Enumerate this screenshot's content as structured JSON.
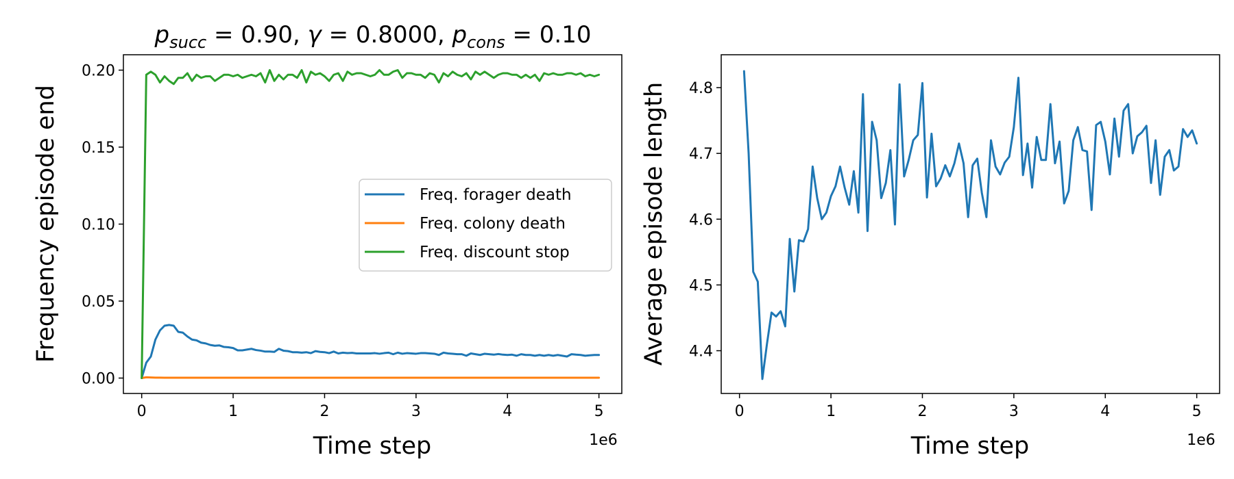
{
  "chart_data": [
    {
      "type": "line",
      "title": {
        "p": "p",
        "succ_sub": "succ",
        "succ_val": " = 0.90, ",
        "gamma": "γ",
        "gamma_val": " = 0.8000, ",
        "cons_sub": "cons",
        "cons_val": " = 0.10"
      },
      "xlabel": "Time step",
      "ylabel": "Frequency episode end",
      "x_offset_text": "1e6",
      "xlim": [
        -0.2,
        5.25
      ],
      "ylim": [
        -0.01,
        0.21
      ],
      "xticks": [
        0,
        1,
        2,
        3,
        4,
        5
      ],
      "xtick_labels": [
        "0",
        "1",
        "2",
        "3",
        "4",
        "5"
      ],
      "yticks": [
        0.0,
        0.05,
        0.1,
        0.15,
        0.2
      ],
      "ytick_labels": [
        "0.00",
        "0.05",
        "0.10",
        "0.15",
        "0.20"
      ],
      "legend_position": "center-right",
      "x": [
        0,
        0.05,
        0.1,
        0.15,
        0.2,
        0.25,
        0.3,
        0.35,
        0.4,
        0.45,
        0.5,
        0.55,
        0.6,
        0.65,
        0.7,
        0.75,
        0.8,
        0.85,
        0.9,
        0.95,
        1.0,
        1.05,
        1.1,
        1.15,
        1.2,
        1.25,
        1.3,
        1.35,
        1.4,
        1.45,
        1.5,
        1.55,
        1.6,
        1.65,
        1.7,
        1.75,
        1.8,
        1.85,
        1.9,
        1.95,
        2.0,
        2.05,
        2.1,
        2.15,
        2.2,
        2.25,
        2.3,
        2.35,
        2.4,
        2.45,
        2.5,
        2.55,
        2.6,
        2.65,
        2.7,
        2.75,
        2.8,
        2.85,
        2.9,
        2.95,
        3.0,
        3.05,
        3.1,
        3.15,
        3.2,
        3.25,
        3.3,
        3.35,
        3.4,
        3.45,
        3.5,
        3.55,
        3.6,
        3.65,
        3.7,
        3.75,
        3.8,
        3.85,
        3.9,
        3.95,
        4.0,
        4.05,
        4.1,
        4.15,
        4.2,
        4.25,
        4.3,
        4.35,
        4.4,
        4.45,
        4.5,
        4.55,
        4.6,
        4.65,
        4.7,
        4.75,
        4.8,
        4.85,
        4.9,
        4.95,
        5.0
      ],
      "series": [
        {
          "name": "Freq. forager death",
          "color": "#1f77b4",
          "values": [
            0.0,
            0.01,
            0.014,
            0.025,
            0.031,
            0.034,
            0.0345,
            0.034,
            0.03,
            0.0295,
            0.027,
            0.025,
            0.0245,
            0.023,
            0.0225,
            0.0215,
            0.021,
            0.0212,
            0.0202,
            0.02,
            0.0195,
            0.018,
            0.018,
            0.0185,
            0.019,
            0.0182,
            0.0178,
            0.0172,
            0.0172,
            0.017,
            0.019,
            0.0178,
            0.0175,
            0.0168,
            0.0168,
            0.0165,
            0.0168,
            0.0162,
            0.0175,
            0.017,
            0.0168,
            0.0162,
            0.0172,
            0.016,
            0.0165,
            0.0162,
            0.0164,
            0.016,
            0.016,
            0.016,
            0.016,
            0.0162,
            0.0158,
            0.0162,
            0.0165,
            0.0155,
            0.0165,
            0.0158,
            0.0162,
            0.016,
            0.0158,
            0.0162,
            0.0162,
            0.016,
            0.0158,
            0.015,
            0.0165,
            0.016,
            0.0158,
            0.0155,
            0.0155,
            0.0145,
            0.016,
            0.0155,
            0.015,
            0.0158,
            0.0155,
            0.0152,
            0.0156,
            0.0152,
            0.015,
            0.0152,
            0.0145,
            0.0155,
            0.015,
            0.015,
            0.0145,
            0.015,
            0.0145,
            0.015,
            0.0145,
            0.015,
            0.0145,
            0.014,
            0.0155,
            0.0152,
            0.015,
            0.0145,
            0.0148,
            0.015,
            0.015
          ]
        },
        {
          "name": "Freq. colony death",
          "color": "#ff7f0e",
          "values": [
            0.0,
            0.0005,
            0.0004,
            0.0003,
            0.0003,
            0.0002,
            0.0002,
            0.0002,
            0.0002,
            0.0002,
            0.0002,
            0.0002,
            0.0002,
            0.0002,
            0.0002,
            0.0002,
            0.0002,
            0.0002,
            0.0002,
            0.0002,
            0.0002,
            0.0002,
            0.0002,
            0.0002,
            0.0002,
            0.0002,
            0.0002,
            0.0002,
            0.0002,
            0.0002,
            0.0002,
            0.0002,
            0.0002,
            0.0002,
            0.0002,
            0.0002,
            0.0002,
            0.0002,
            0.0002,
            0.0002,
            0.0002,
            0.0002,
            0.0002,
            0.0002,
            0.0002,
            0.0002,
            0.0002,
            0.0002,
            0.0002,
            0.0002,
            0.0002,
            0.0002,
            0.0002,
            0.0002,
            0.0002,
            0.0002,
            0.0002,
            0.0002,
            0.0002,
            0.0002,
            0.0002,
            0.0002,
            0.0002,
            0.0002,
            0.0002,
            0.0002,
            0.0002,
            0.0002,
            0.0002,
            0.0002,
            0.0002,
            0.0002,
            0.0002,
            0.0002,
            0.0002,
            0.0002,
            0.0002,
            0.0002,
            0.0002,
            0.0002,
            0.0002,
            0.0002,
            0.0002,
            0.0002,
            0.0002,
            0.0002,
            0.0002,
            0.0002,
            0.0002,
            0.0002,
            0.0002,
            0.0002,
            0.0002,
            0.0002,
            0.0002,
            0.0002,
            0.0002,
            0.0002,
            0.0002,
            0.0002,
            0.0002
          ]
        },
        {
          "name": "Freq. discount stop",
          "color": "#2ca02c",
          "values": [
            0.0,
            0.197,
            0.199,
            0.197,
            0.192,
            0.196,
            0.193,
            0.191,
            0.195,
            0.195,
            0.198,
            0.193,
            0.197,
            0.195,
            0.196,
            0.196,
            0.193,
            0.195,
            0.197,
            0.197,
            0.196,
            0.197,
            0.195,
            0.196,
            0.197,
            0.196,
            0.198,
            0.192,
            0.2,
            0.193,
            0.197,
            0.194,
            0.197,
            0.197,
            0.195,
            0.2,
            0.192,
            0.199,
            0.197,
            0.198,
            0.196,
            0.193,
            0.197,
            0.198,
            0.193,
            0.199,
            0.197,
            0.198,
            0.198,
            0.197,
            0.196,
            0.197,
            0.2,
            0.197,
            0.197,
            0.199,
            0.2,
            0.195,
            0.198,
            0.198,
            0.197,
            0.197,
            0.195,
            0.198,
            0.197,
            0.192,
            0.198,
            0.196,
            0.199,
            0.197,
            0.196,
            0.198,
            0.194,
            0.199,
            0.197,
            0.199,
            0.197,
            0.195,
            0.197,
            0.198,
            0.198,
            0.197,
            0.197,
            0.195,
            0.197,
            0.195,
            0.197,
            0.193,
            0.198,
            0.197,
            0.198,
            0.197,
            0.197,
            0.198,
            0.198,
            0.197,
            0.198,
            0.196,
            0.197,
            0.196,
            0.197
          ]
        }
      ]
    },
    {
      "type": "line",
      "xlabel": "Time step",
      "ylabel": "Average episode length",
      "x_offset_text": "1e6",
      "xlim": [
        -0.2,
        5.25
      ],
      "ylim": [
        4.335,
        4.85
      ],
      "xticks": [
        0,
        1,
        2,
        3,
        4,
        5
      ],
      "xtick_labels": [
        "0",
        "1",
        "2",
        "3",
        "4",
        "5"
      ],
      "yticks": [
        4.4,
        4.5,
        4.6,
        4.7,
        4.8
      ],
      "ytick_labels": [
        "4.4",
        "4.5",
        "4.6",
        "4.7",
        "4.8"
      ],
      "x": [
        0.05,
        0.1,
        0.15,
        0.2,
        0.25,
        0.3,
        0.35,
        0.4,
        0.45,
        0.5,
        0.55,
        0.6,
        0.65,
        0.7,
        0.75,
        0.8,
        0.85,
        0.9,
        0.95,
        1.0,
        1.05,
        1.1,
        1.15,
        1.2,
        1.25,
        1.3,
        1.35,
        1.4,
        1.45,
        1.5,
        1.55,
        1.6,
        1.65,
        1.7,
        1.75,
        1.8,
        1.85,
        1.9,
        1.95,
        2.0,
        2.05,
        2.1,
        2.15,
        2.2,
        2.25,
        2.3,
        2.35,
        2.4,
        2.45,
        2.5,
        2.55,
        2.6,
        2.65,
        2.7,
        2.75,
        2.8,
        2.85,
        2.9,
        2.95,
        3.0,
        3.05,
        3.1,
        3.15,
        3.2,
        3.25,
        3.3,
        3.35,
        3.4,
        3.45,
        3.5,
        3.55,
        3.6,
        3.65,
        3.7,
        3.75,
        3.8,
        3.85,
        3.9,
        3.95,
        4.0,
        4.05,
        4.1,
        4.15,
        4.2,
        4.25,
        4.3,
        4.35,
        4.4,
        4.45,
        4.5,
        4.55,
        4.6,
        4.65,
        4.7,
        4.75,
        4.8,
        4.85,
        4.9,
        4.95,
        5.0
      ],
      "series": [
        {
          "color": "#1f77b4",
          "values": [
            4.825,
            4.7,
            4.52,
            4.505,
            4.357,
            4.41,
            4.458,
            4.452,
            4.46,
            4.437,
            4.57,
            4.49,
            4.568,
            4.566,
            4.585,
            4.68,
            4.632,
            4.6,
            4.61,
            4.635,
            4.65,
            4.68,
            4.648,
            4.622,
            4.673,
            4.61,
            4.79,
            4.582,
            4.748,
            4.72,
            4.632,
            4.655,
            4.705,
            4.592,
            4.805,
            4.665,
            4.69,
            4.72,
            4.728,
            4.807,
            4.633,
            4.73,
            4.65,
            4.662,
            4.682,
            4.665,
            4.685,
            4.715,
            4.685,
            4.603,
            4.682,
            4.692,
            4.64,
            4.603,
            4.72,
            4.68,
            4.668,
            4.686,
            4.695,
            4.74,
            4.815,
            4.667,
            4.715,
            4.648,
            4.725,
            4.69,
            4.69,
            4.775,
            4.685,
            4.718,
            4.624,
            4.643,
            4.72,
            4.74,
            4.705,
            4.703,
            4.614,
            4.743,
            4.748,
            4.718,
            4.668,
            4.753,
            4.695,
            4.765,
            4.775,
            4.7,
            4.726,
            4.732,
            4.742,
            4.655,
            4.72,
            4.637,
            4.695,
            4.705,
            4.674,
            4.68,
            4.737,
            4.725,
            4.735,
            4.715
          ]
        }
      ]
    }
  ]
}
